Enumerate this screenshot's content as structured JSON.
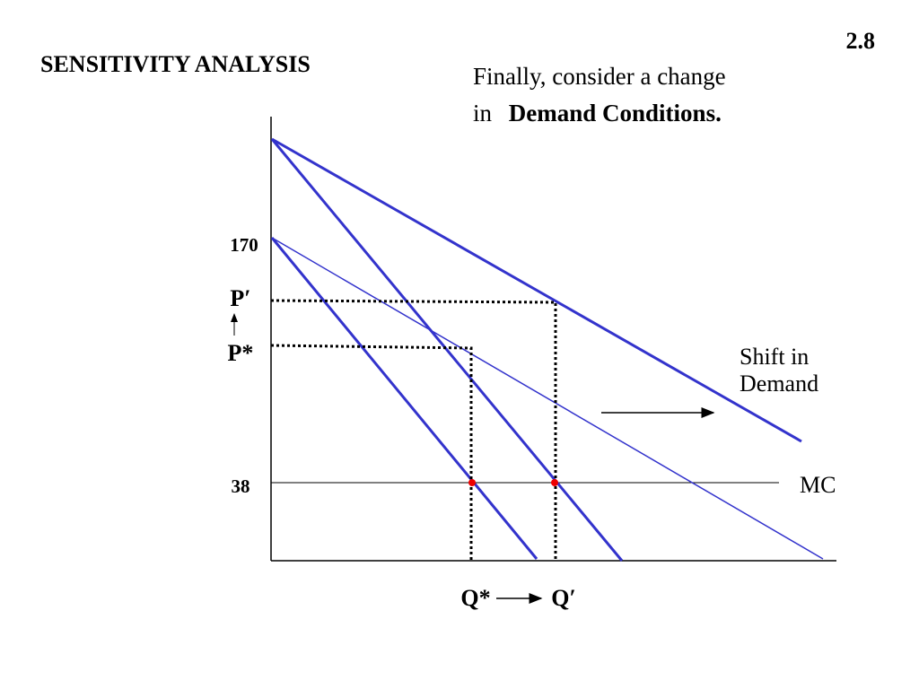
{
  "header": {
    "page_number": "2.8",
    "title": "SENSITIVITY ANALYSIS"
  },
  "caption": {
    "line1": "Finally, consider a change",
    "line2_prefix": "in",
    "line2_bold": "Demand Conditions."
  },
  "diagram": {
    "y_labels": [
      "170",
      "P′",
      "P*",
      "38"
    ],
    "x_labels": [
      "Q*",
      "Q′"
    ],
    "shift_label": [
      "Shift in",
      "Demand"
    ],
    "mc_label": "MC"
  }
}
